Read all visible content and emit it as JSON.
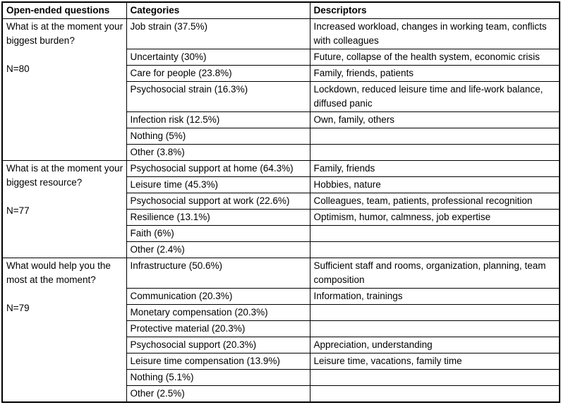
{
  "colors": {
    "border": "#000000",
    "background": "#ffffff",
    "text": "#000000"
  },
  "table": {
    "headers": [
      "Open-ended questions",
      "Categories",
      "Descriptors"
    ],
    "sections": [
      {
        "question": "What is at the moment your biggest burden?",
        "n": "N=80",
        "rows": [
          {
            "category": "Job strain (37.5%)",
            "descriptor": "Increased workload, changes in working team, conflicts with colleagues"
          },
          {
            "category": "Uncertainty (30%)",
            "descriptor": "Future, collapse of the health system, economic crisis"
          },
          {
            "category": "Care for people (23.8%)",
            "descriptor": "Family, friends, patients"
          },
          {
            "category": "Psychosocial strain (16.3%)",
            "descriptor": "Lockdown, reduced leisure time and life-work balance, diffused panic"
          },
          {
            "category": "Infection risk (12.5%)",
            "descriptor": "Own, family, others"
          },
          {
            "category": "Nothing (5%)",
            "descriptor": ""
          },
          {
            "category": "Other (3.8%)",
            "descriptor": ""
          }
        ]
      },
      {
        "question": "What is at the moment your biggest resource?",
        "n": "N=77",
        "rows": [
          {
            "category": "Psychosocial support at home (64.3%)",
            "descriptor": "Family, friends"
          },
          {
            "category": "Leisure time (45.3%)",
            "descriptor": "Hobbies, nature"
          },
          {
            "category": "Psychosocial support at work (22.6%)",
            "descriptor": "Colleagues, team, patients, professional recognition"
          },
          {
            "category": "Resilience (13.1%)",
            "descriptor": "Optimism, humor, calmness, job expertise"
          },
          {
            "category": "Faith (6%)",
            "descriptor": ""
          },
          {
            "category": "Other (2.4%)",
            "descriptor": ""
          }
        ]
      },
      {
        "question": "What would help you the most at the moment?",
        "n": "N=79",
        "rows": [
          {
            "category": "Infrastructure (50.6%)",
            "descriptor": "Sufficient staff and rooms, organization, planning, team composition"
          },
          {
            "category": "Communication (20.3%)",
            "descriptor": "Information, trainings"
          },
          {
            "category": "Monetary compensation (20.3%)",
            "descriptor": ""
          },
          {
            "category": "Protective material (20.3%)",
            "descriptor": ""
          },
          {
            "category": "Psychosocial support (20.3%)",
            "descriptor": "Appreciation, understanding"
          },
          {
            "category": "Leisure time compensation (13.9%)",
            "descriptor": "Leisure time, vacations, family time"
          },
          {
            "category": "Nothing (5.1%)",
            "descriptor": ""
          },
          {
            "category": "Other (2.5%)",
            "descriptor": ""
          }
        ]
      }
    ]
  }
}
